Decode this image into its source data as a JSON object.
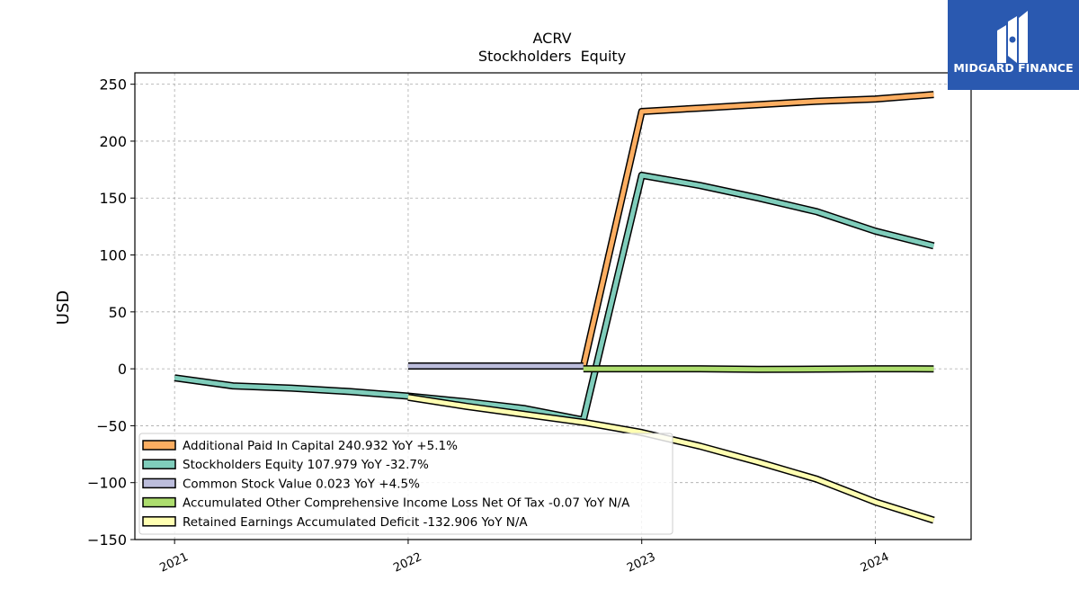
{
  "chart_data": {
    "type": "line",
    "title": "ACRV",
    "subtitle": "Stockholders  Equity",
    "ylabel": "USD",
    "xlabel": "",
    "ylim": [
      -150,
      260
    ],
    "xlim": [
      2020.83,
      2024.41
    ],
    "yticks": [
      250,
      200,
      150,
      100,
      50,
      0,
      -50,
      -100,
      -150
    ],
    "ytick_labels": [
      "250",
      "200",
      "150",
      "100",
      "50",
      "0",
      "−50",
      "−100",
      "−150"
    ],
    "xticks": [
      2021,
      2022,
      2023,
      2024
    ],
    "xtick_labels": [
      "2021",
      "2022",
      "2023",
      "2024"
    ],
    "grid": true,
    "legend_position": "bottom-left",
    "series": [
      {
        "name": "Additional Paid In Capital",
        "legend_label": "Additional Paid In Capital  240.932 YoY +5.1%",
        "color": "#fdae61",
        "x": [
          2022.75,
          2023.0,
          2023.25,
          2023.5,
          2023.75,
          2024.0,
          2024.25
        ],
        "y": [
          2,
          226,
          229,
          232,
          235,
          237,
          241
        ]
      },
      {
        "name": "Stockholders Equity",
        "legend_label": "Stockholders Equity  107.979 YoY -32.7%",
        "color": "#7fcdbb",
        "x": [
          2021.0,
          2021.25,
          2021.5,
          2021.75,
          2022.0,
          2022.25,
          2022.5,
          2022.75,
          2023.0,
          2023.25,
          2023.5,
          2023.75,
          2024.0,
          2024.25
        ],
        "y": [
          -8,
          -15,
          -17,
          -20,
          -24,
          -29,
          -35,
          -45,
          170,
          161,
          150,
          138,
          121,
          108
        ]
      },
      {
        "name": "Common Stock Value",
        "legend_label": "Common Stock Value  0.023 YoY +4.5%",
        "color": "#bcbddc",
        "x": [
          2022.0,
          2022.25,
          2022.5,
          2022.75
        ],
        "y": [
          2.5,
          2.5,
          2.5,
          2.5
        ]
      },
      {
        "name": "Accumulated Other Comprehensive Income Loss Net Of Tax",
        "legend_label": "Accumulated Other Comprehensive Income Loss Net Of Tax  -0.07 YoY N/A",
        "color": "#addd6e",
        "x": [
          2022.75,
          2023.0,
          2023.25,
          2023.5,
          2023.75,
          2024.0,
          2024.25
        ],
        "y": [
          0,
          0,
          0,
          -0.5,
          -0.3,
          0,
          -0.07
        ]
      },
      {
        "name": "Retained Earnings Accumulated Deficit",
        "legend_label": "Retained Earnings Accumulated Deficit  -132.906 YoY N/A",
        "color": "#ffffb2",
        "x": [
          2022.0,
          2022.25,
          2022.5,
          2022.75,
          2023.0,
          2023.25,
          2023.5,
          2023.75,
          2024.0,
          2024.25
        ],
        "y": [
          -25,
          -33,
          -40,
          -47,
          -56,
          -68,
          -82,
          -97,
          -117,
          -133
        ]
      }
    ]
  },
  "logo": {
    "text": "MIDGARD FINANCE",
    "background": "#2a59b0"
  }
}
